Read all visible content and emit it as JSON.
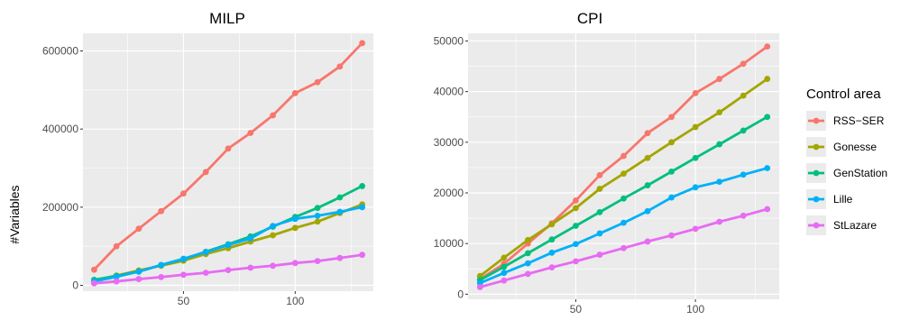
{
  "legend": {
    "title": "Control area",
    "placement": "right"
  },
  "colors": {
    "panel_bg": "#ebebeb",
    "grid": "#ffffff",
    "RSS-SER": "#f8766d",
    "Gonesse": "#a3a500",
    "GenStation": "#00bf7d",
    "Lille": "#00b0f6",
    "StLazare": "#e76bf3"
  },
  "chart_data": [
    {
      "type": "line",
      "title": "MILP",
      "xlabel": "",
      "ylabel": "#Variables",
      "xlim": [
        5,
        135
      ],
      "ylim": [
        -15000,
        645000
      ],
      "xticks": [
        50,
        100
      ],
      "yticks": [
        0,
        200000,
        400000,
        600000
      ],
      "ytick_labels": [
        "0",
        "200000",
        "400000",
        "600000"
      ],
      "grid": true,
      "x": [
        10,
        20,
        30,
        40,
        50,
        60,
        70,
        80,
        90,
        100,
        110,
        120,
        130
      ],
      "series": [
        {
          "name": "RSS−SER",
          "values": [
            40000,
            100000,
            145000,
            190000,
            235000,
            290000,
            350000,
            390000,
            435000,
            492000,
            520000,
            560000,
            620000
          ]
        },
        {
          "name": "Gonesse",
          "values": [
            12000,
            25000,
            38000,
            50000,
            63000,
            80000,
            95000,
            112000,
            128000,
            147000,
            163000,
            185000,
            207000
          ]
        },
        {
          "name": "GenStation",
          "values": [
            14000,
            24000,
            35000,
            52000,
            67000,
            86000,
            105000,
            125000,
            150000,
            175000,
            198000,
            225000,
            254000
          ]
        },
        {
          "name": "Lille",
          "values": [
            10000,
            22000,
            35000,
            52000,
            68000,
            85000,
            103000,
            120000,
            152000,
            170000,
            178000,
            188000,
            200000
          ]
        },
        {
          "name": "StLazare",
          "values": [
            5000,
            10000,
            16000,
            21000,
            27000,
            32000,
            39000,
            45000,
            50000,
            57000,
            62000,
            70000,
            78000
          ]
        }
      ]
    },
    {
      "type": "line",
      "title": "CPI",
      "xlabel": "",
      "ylabel": "",
      "xlim": [
        5,
        135
      ],
      "ylim": [
        -1000,
        51500
      ],
      "xticks": [
        50,
        100
      ],
      "yticks": [
        0,
        10000,
        20000,
        30000,
        40000,
        50000
      ],
      "ytick_labels": [
        "0",
        "10000",
        "20000",
        "30000",
        "40000",
        "50000"
      ],
      "grid": true,
      "x": [
        10,
        20,
        30,
        40,
        50,
        60,
        70,
        80,
        90,
        100,
        110,
        120,
        130
      ],
      "series": [
        {
          "name": "RSS−SER",
          "values": [
            3000,
            6000,
            10000,
            14000,
            18500,
            23500,
            27300,
            31800,
            35000,
            39700,
            42500,
            45500,
            48900
          ]
        },
        {
          "name": "Gonesse",
          "values": [
            3600,
            7200,
            10700,
            13800,
            17000,
            20800,
            23800,
            26900,
            30000,
            33000,
            35900,
            39200,
            42500
          ]
        },
        {
          "name": "GenStation",
          "values": [
            2800,
            5400,
            8100,
            10800,
            13500,
            16200,
            18900,
            21500,
            24200,
            26900,
            29600,
            32300,
            35000
          ]
        },
        {
          "name": "Lille",
          "values": [
            2200,
            4200,
            6100,
            8200,
            9900,
            12000,
            14100,
            16400,
            19100,
            21100,
            22200,
            23600,
            24900
          ]
        },
        {
          "name": "StLazare",
          "values": [
            1400,
            2700,
            4000,
            5300,
            6500,
            7800,
            9100,
            10400,
            11600,
            12900,
            14300,
            15500,
            16800
          ]
        }
      ]
    }
  ]
}
